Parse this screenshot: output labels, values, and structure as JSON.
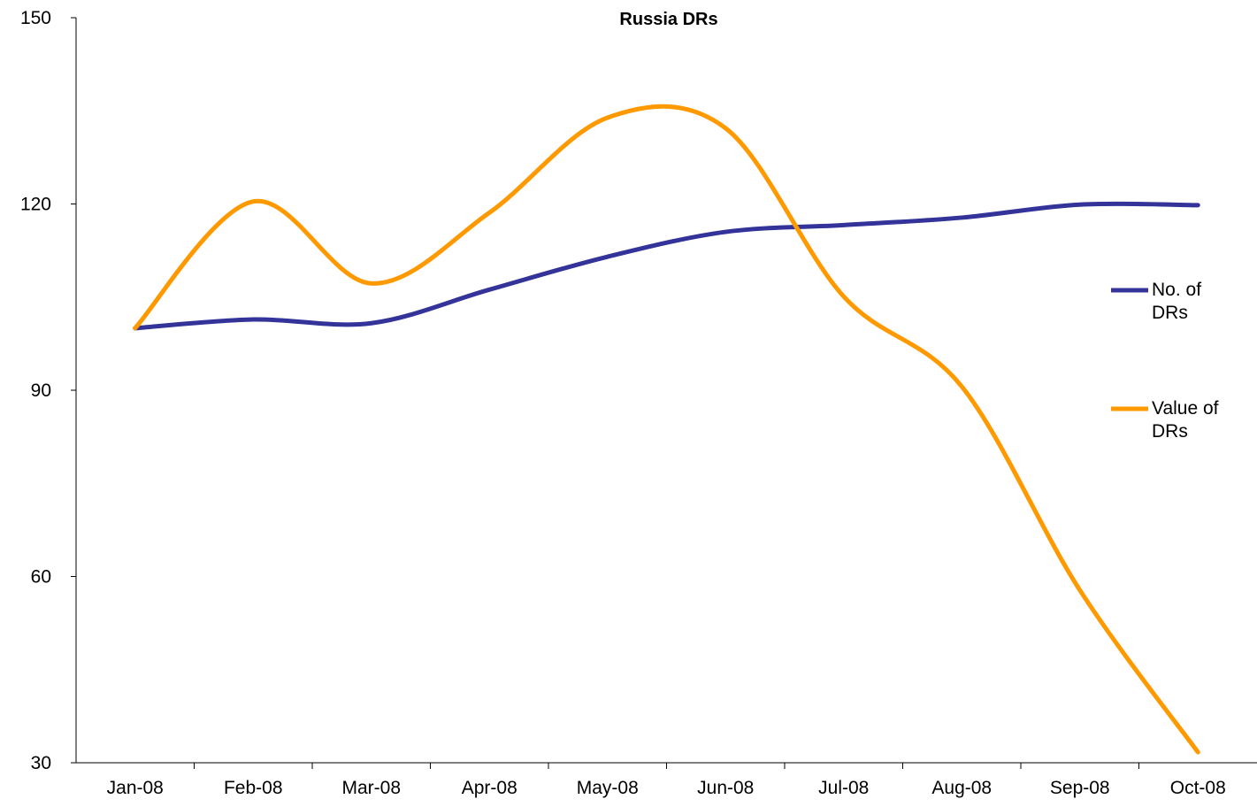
{
  "chart_data": {
    "type": "line",
    "title": "Russia DRs",
    "categories": [
      "Jan-08",
      "Feb-08",
      "Mar-08",
      "Apr-08",
      "May-08",
      "Jun-08",
      "Jul-08",
      "Aug-08",
      "Sep-08",
      "Oct-08"
    ],
    "series": [
      {
        "name": "No. of DRs",
        "color": "#333399",
        "values": [
          100,
          101.4,
          100.8,
          106.2,
          111.5,
          115.5,
          116.6,
          117.8,
          119.9,
          119.8
        ]
      },
      {
        "name": "Value of DRs",
        "color": "#ff9900",
        "values": [
          100,
          120.4,
          107.2,
          118.6,
          133.9,
          132.2,
          105.1,
          90.6,
          57.8,
          31.7
        ]
      }
    ],
    "ylim": [
      30,
      150
    ],
    "yticks": [
      30,
      60,
      90,
      120,
      150
    ],
    "grid": false,
    "legend": "right",
    "smooth": true
  }
}
